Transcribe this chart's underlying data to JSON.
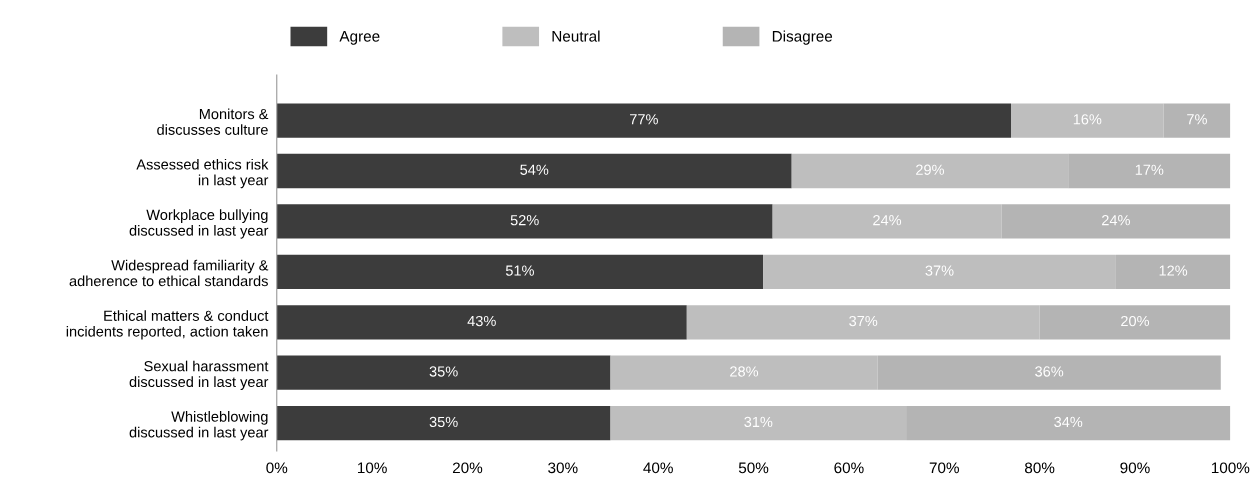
{
  "chart_data": {
    "type": "bar",
    "orientation": "horizontal",
    "stacked": true,
    "categories": [
      "Monitors &\ndiscusses culture",
      "Assessed ethics risk\nin last year",
      "Workplace bullying\ndiscussed in last year",
      "Widespread familiarity &\nadherence to ethical standards",
      "Ethical matters & conduct\nincidents reported, action taken",
      "Sexual harassment\ndiscussed in last year",
      "Whistleblowing\ndiscussed in last year"
    ],
    "series": [
      {
        "name": "Agree",
        "color": "#3c3c3c",
        "values": [
          77,
          54,
          52,
          51,
          43,
          35,
          35
        ],
        "value_labels": [
          "77%",
          "54%",
          "52%",
          "51%",
          "43%",
          "35%",
          "35%"
        ]
      },
      {
        "name": "Neutral",
        "color": "#bebebe",
        "values": [
          16,
          29,
          24,
          37,
          37,
          28,
          31
        ],
        "value_labels": [
          "16%",
          "29%",
          "24%",
          "37%",
          "37%",
          "28%",
          "31%"
        ]
      },
      {
        "name": "Disagree",
        "color": "#b4b4b4",
        "values": [
          7,
          17,
          24,
          12,
          20,
          36,
          34
        ],
        "value_labels": [
          "7%",
          "17%",
          "24%",
          "12%",
          "20%",
          "36%",
          "34%"
        ]
      }
    ],
    "xlim": [
      0,
      100
    ],
    "xticks": [
      {
        "value": 0,
        "label": "0%"
      },
      {
        "value": 10,
        "label": "10%"
      },
      {
        "value": 20,
        "label": "20%"
      },
      {
        "value": 30,
        "label": "30%"
      },
      {
        "value": 40,
        "label": "40%"
      },
      {
        "value": 50,
        "label": "50%"
      },
      {
        "value": 60,
        "label": "60%"
      },
      {
        "value": 70,
        "label": "70%"
      },
      {
        "value": 80,
        "label": "80%"
      },
      {
        "value": 90,
        "label": "90%"
      },
      {
        "value": 100,
        "label": "100%"
      }
    ],
    "legend": "top",
    "grid": false
  }
}
